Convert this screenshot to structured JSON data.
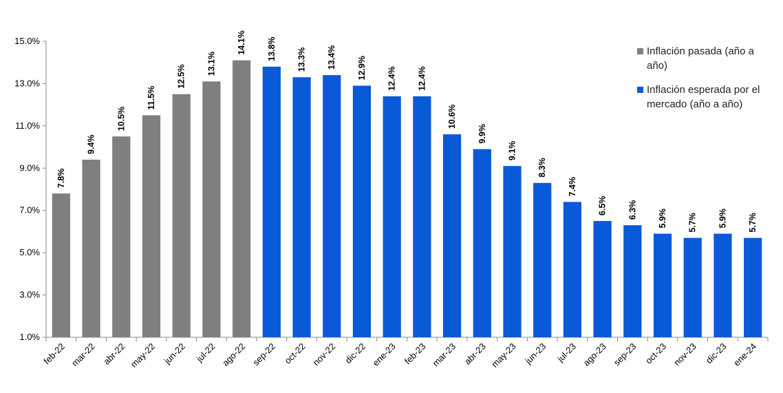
{
  "chart_data": {
    "type": "bar",
    "categories": [
      "feb-22",
      "mar-22",
      "abr-22",
      "may-22",
      "jun-22",
      "jul-22",
      "ago-22",
      "sep-22",
      "oct-22",
      "nov-22",
      "dic-22",
      "ene-23",
      "feb-23",
      "mar-23",
      "abr-23",
      "may-23",
      "jun-23",
      "jul-23",
      "ago-23",
      "sep-23",
      "oct-23",
      "nov-23",
      "dic-23",
      "ene-24"
    ],
    "series": [
      {
        "name": "Inflación pasada (año a año)",
        "color": "#7f7f7f",
        "values": [
          7.8,
          9.4,
          10.5,
          11.5,
          12.5,
          13.1,
          14.1,
          null,
          null,
          null,
          null,
          null,
          null,
          null,
          null,
          null,
          null,
          null,
          null,
          null,
          null,
          null,
          null,
          null
        ],
        "value_labels": [
          "7.8%",
          "9.4%",
          "10.5%",
          "11.5%",
          "12.5%",
          "13.1%",
          "14.1%",
          null,
          null,
          null,
          null,
          null,
          null,
          null,
          null,
          null,
          null,
          null,
          null,
          null,
          null,
          null,
          null,
          null
        ]
      },
      {
        "name": "Inflación esperada por el mercado (año a año)",
        "color": "#0a59d8",
        "values": [
          null,
          null,
          null,
          null,
          null,
          null,
          null,
          13.8,
          13.3,
          13.4,
          12.9,
          12.4,
          12.4,
          10.6,
          9.9,
          9.1,
          8.3,
          7.4,
          6.5,
          6.3,
          5.9,
          5.7,
          5.9,
          5.7
        ],
        "value_labels": [
          null,
          null,
          null,
          null,
          null,
          null,
          null,
          "13.8%",
          "13.3%",
          "13.4%",
          "12.9%",
          "12.4%",
          "12.4%",
          "10.6%",
          "9.9%",
          "9.1%",
          "8.3%",
          "7.4%",
          "6.5%",
          "6.3%",
          "5.9%",
          "5.7%",
          "5.9%",
          "5.7%"
        ]
      }
    ],
    "ylim": [
      1,
      15
    ],
    "yticks": [
      {
        "value": 1,
        "label": "1.0%"
      },
      {
        "value": 3,
        "label": "3.0%"
      },
      {
        "value": 5,
        "label": "5.0%"
      },
      {
        "value": 7,
        "label": "7.0%"
      },
      {
        "value": 9,
        "label": "9.0%"
      },
      {
        "value": 11,
        "label": "11.0%"
      },
      {
        "value": 13,
        "label": "13.0%"
      },
      {
        "value": 15,
        "label": "15.0%"
      }
    ],
    "grid": false
  }
}
